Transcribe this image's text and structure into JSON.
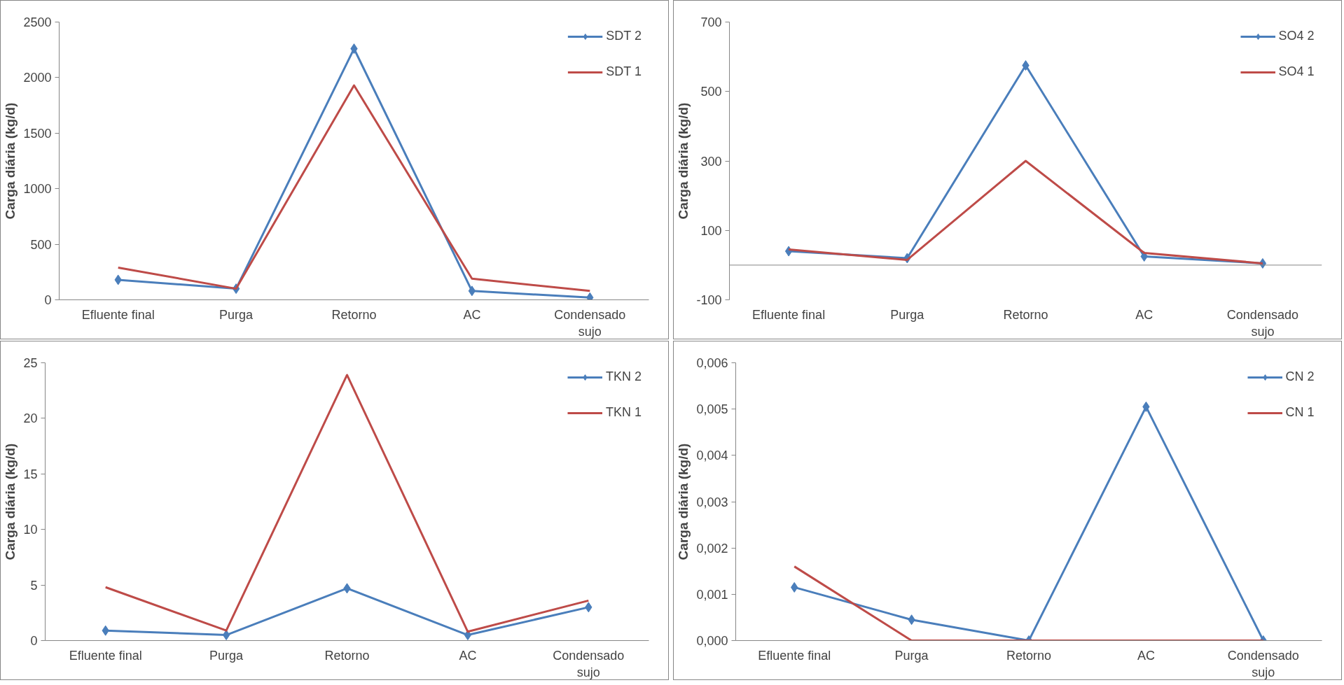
{
  "chart_data": [
    {
      "type": "line",
      "ylabel": "Carga diária (kg/d)",
      "categories": [
        "Efluente final",
        "Purga",
        "Retorno",
        "AC",
        "Condensado sujo"
      ],
      "ylim": [
        0,
        2500
      ],
      "yticks": [
        0,
        500,
        1000,
        1500,
        2000,
        2500
      ],
      "grid": false,
      "legend": "top right",
      "series": [
        {
          "name": "SDT 2",
          "color": "#4a7ebb",
          "marker": "diamond",
          "values": [
            180,
            100,
            2260,
            80,
            20
          ]
        },
        {
          "name": "SDT 1",
          "color": "#be4b48",
          "marker": "none",
          "values": [
            290,
            100,
            1930,
            190,
            80
          ]
        }
      ]
    },
    {
      "type": "line",
      "ylabel": "Carga diária (kg/d)",
      "categories": [
        "Efluente final",
        "Purga",
        "Retorno",
        "AC",
        "Condensado sujo"
      ],
      "ylim": [
        -100,
        700
      ],
      "yticks": [
        -100,
        100,
        300,
        500,
        700
      ],
      "grid": false,
      "legend": "top right",
      "series": [
        {
          "name": "SO4 2",
          "color": "#4a7ebb",
          "marker": "diamond",
          "values": [
            40,
            20,
            575,
            25,
            5
          ]
        },
        {
          "name": "SO4 1",
          "color": "#be4b48",
          "marker": "none",
          "values": [
            45,
            15,
            300,
            35,
            5
          ]
        }
      ]
    },
    {
      "type": "line",
      "ylabel": "Carga diária (kg/d)",
      "categories": [
        "Efluente final",
        "Purga",
        "Retorno",
        "AC",
        "Condensado sujo"
      ],
      "ylim": [
        0,
        25
      ],
      "yticks": [
        0,
        5,
        10,
        15,
        20,
        25
      ],
      "grid": false,
      "legend": "top right",
      "series": [
        {
          "name": "TKN 2",
          "color": "#4a7ebb",
          "marker": "diamond",
          "values": [
            0.9,
            0.5,
            4.7,
            0.5,
            3.0
          ]
        },
        {
          "name": "TKN 1",
          "color": "#be4b48",
          "marker": "none",
          "values": [
            4.8,
            0.9,
            23.9,
            0.8,
            3.6
          ]
        }
      ]
    },
    {
      "type": "line",
      "ylabel": "Carga diária (kg/d)",
      "categories": [
        "Efluente final",
        "Purga",
        "Retorno",
        "AC",
        "Condensado sujo"
      ],
      "ylim": [
        0,
        0.006
      ],
      "yticks": [
        {
          "value": 0,
          "label": "0,000"
        },
        {
          "value": 0.001,
          "label": "0,001"
        },
        {
          "value": 0.002,
          "label": "0,002"
        },
        {
          "value": 0.003,
          "label": "0,003"
        },
        {
          "value": 0.004,
          "label": "0,004"
        },
        {
          "value": 0.005,
          "label": "0,005"
        },
        {
          "value": 0.006,
          "label": "0,006"
        }
      ],
      "grid": false,
      "legend": "top right",
      "series": [
        {
          "name": "CN 2",
          "color": "#4a7ebb",
          "marker": "diamond",
          "values": [
            0.00115,
            0.00045,
            0,
            0.00505,
            0
          ]
        },
        {
          "name": "CN 1",
          "color": "#be4b48",
          "marker": "none",
          "values": [
            0.0016,
            0,
            0,
            0,
            0
          ]
        }
      ]
    }
  ]
}
